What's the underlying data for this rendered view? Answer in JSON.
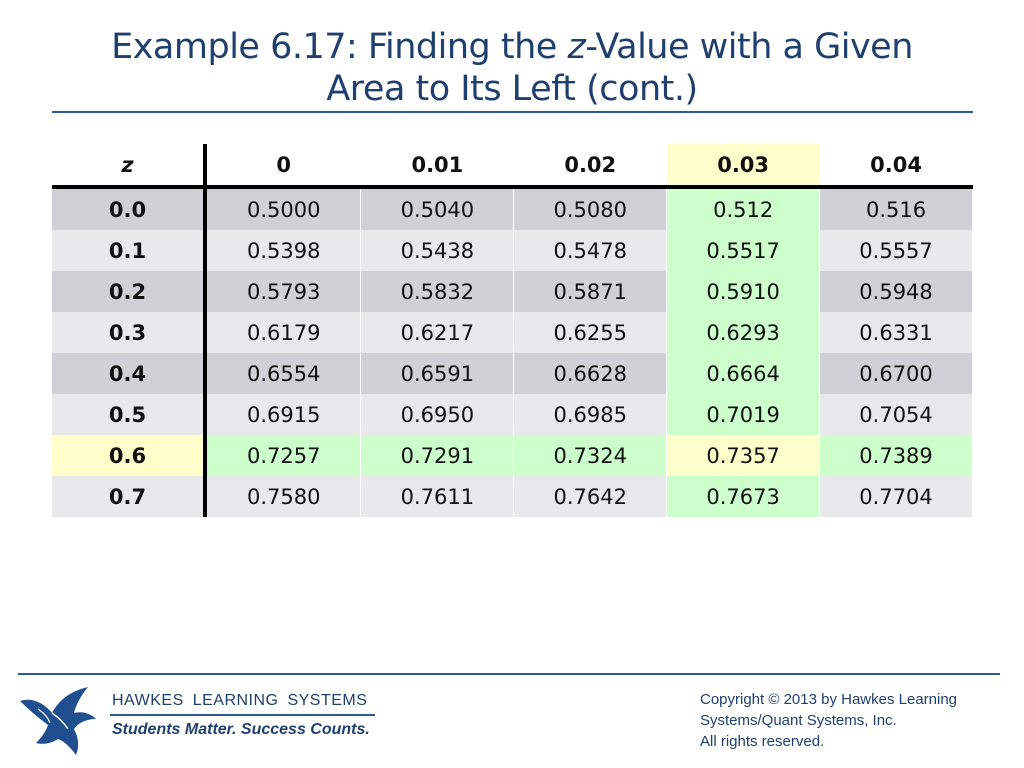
{
  "title": {
    "line1_prefix": "Example 6.17: Finding the ",
    "line1_italic": "z",
    "line1_suffix": "-Value with a Given",
    "line2": "Area to Its Left (cont.)"
  },
  "table": {
    "corner_label": "z",
    "columns": [
      "0",
      "0.01",
      "0.02",
      "0.03",
      "0.04"
    ],
    "highlight_column": "0.03",
    "highlight_row": "0.6",
    "rows": [
      {
        "z": "0.0",
        "values": [
          "0.5000",
          "0.5040",
          "0.5080",
          "0.512",
          "0.516"
        ]
      },
      {
        "z": "0.1",
        "values": [
          "0.5398",
          "0.5438",
          "0.5478",
          "0.5517",
          "0.5557"
        ]
      },
      {
        "z": "0.2",
        "values": [
          "0.5793",
          "0.5832",
          "0.5871",
          "0.5910",
          "0.5948"
        ]
      },
      {
        "z": "0.3",
        "values": [
          "0.6179",
          "0.6217",
          "0.6255",
          "0.6293",
          "0.6331"
        ]
      },
      {
        "z": "0.4",
        "values": [
          "0.6554",
          "0.6591",
          "0.6628",
          "0.6664",
          "0.6700"
        ]
      },
      {
        "z": "0.5",
        "values": [
          "0.6915",
          "0.6950",
          "0.6985",
          "0.7019",
          "0.7054"
        ]
      },
      {
        "z": "0.6",
        "values": [
          "0.7257",
          "0.7291",
          "0.7324",
          "0.7357",
          "0.7389"
        ]
      },
      {
        "z": "0.7",
        "values": [
          "0.7580",
          "0.7611",
          "0.7642",
          "0.7673",
          "0.7704"
        ]
      }
    ]
  },
  "footer": {
    "logo_icon": "eagle-icon",
    "brand": "HAWKES LEARNING SYSTEMS",
    "tagline": "Students Matter. Success Counts.",
    "copyright_lines": [
      "Copyright © 2013 by Hawkes Learning",
      "Systems/Quant Systems, Inc.",
      "All rights reserved."
    ]
  },
  "colors": {
    "title": "#1f3f6e",
    "row_odd": "#d0d1d6",
    "row_even": "#e9e9eb",
    "highlight_green": "#ccffcc",
    "highlight_yellow": "#ffffcc"
  }
}
